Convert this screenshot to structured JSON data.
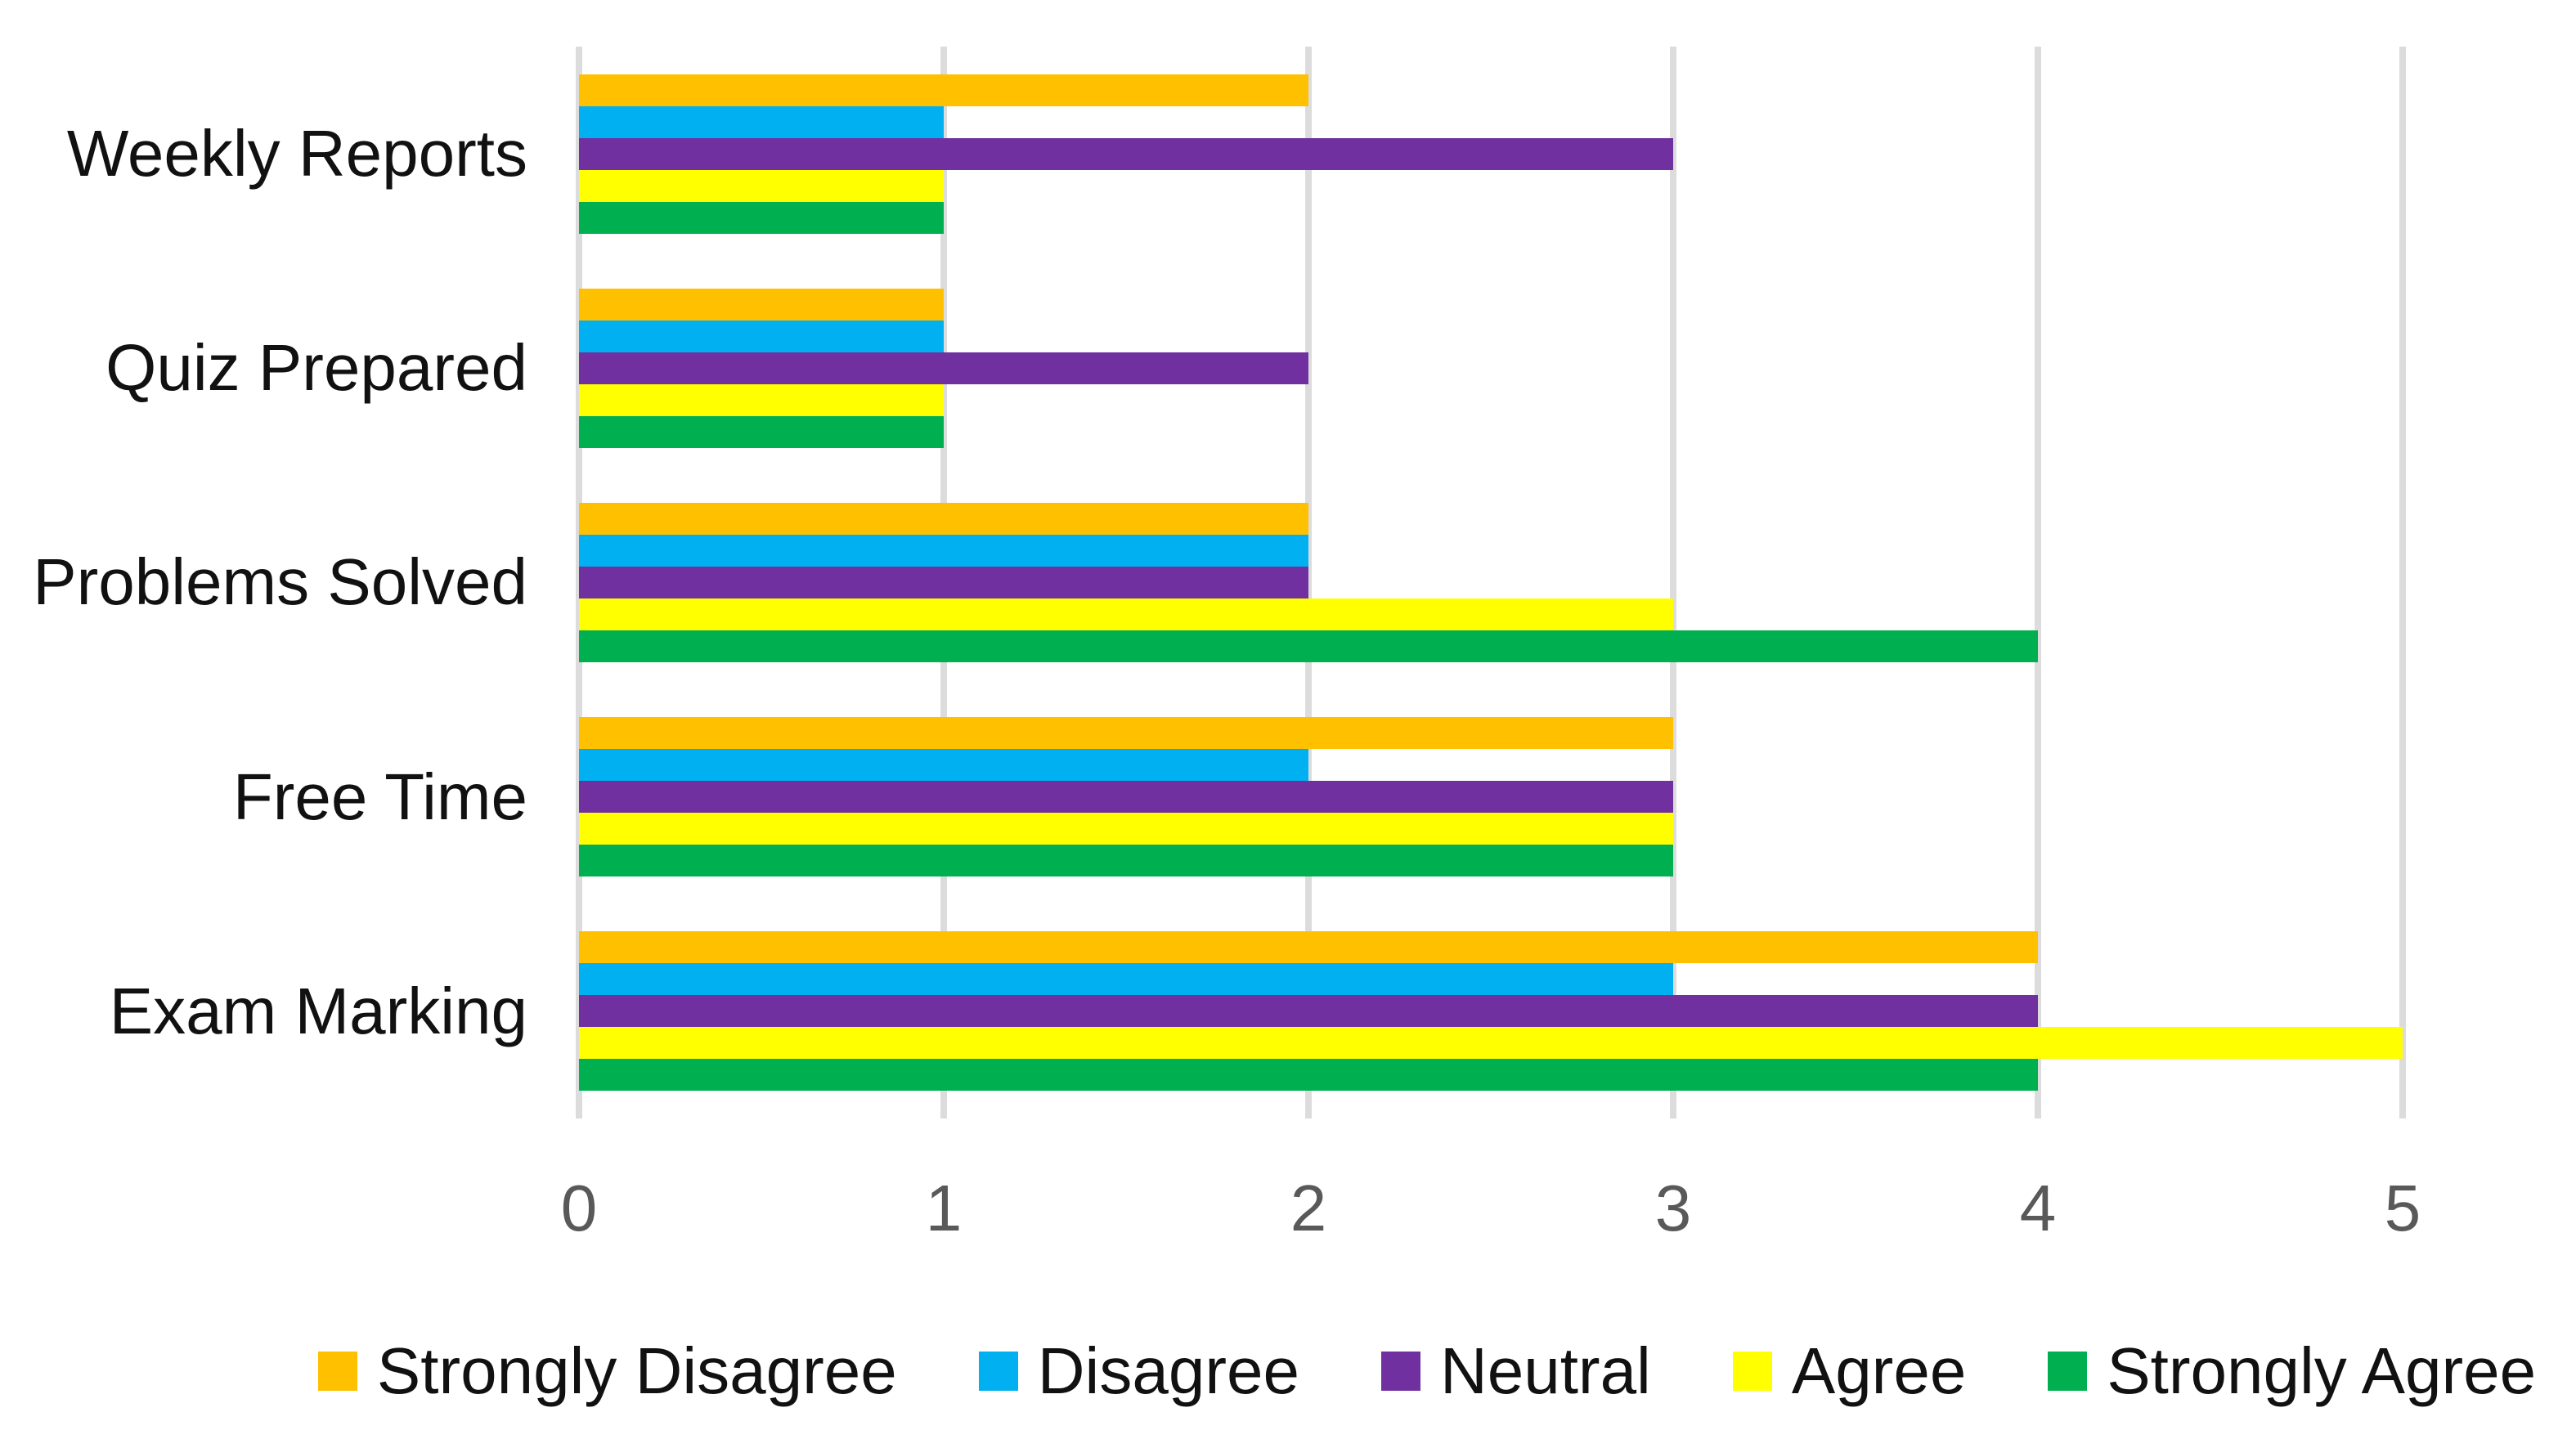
{
  "chart_data": {
    "type": "bar",
    "orientation": "horizontal",
    "title": "",
    "xlabel": "",
    "ylabel": "",
    "categories": [
      "Weekly Reports",
      "Quiz Prepared",
      "Problems Solved",
      "Free Time",
      "Exam Marking"
    ],
    "series": [
      {
        "name": "Strongly Disagree",
        "color": "#FFC000",
        "values": [
          2,
          1,
          2,
          3,
          4
        ]
      },
      {
        "name": "Disagree",
        "color": "#00B0F0",
        "values": [
          1,
          1,
          2,
          2,
          3
        ]
      },
      {
        "name": "Neutral",
        "color": "#7030A0",
        "values": [
          3,
          2,
          2,
          3,
          4
        ]
      },
      {
        "name": "Agree",
        "color": "#FFFF00",
        "values": [
          1,
          1,
          3,
          3,
          5
        ]
      },
      {
        "name": "Strongly Agree",
        "color": "#00B050",
        "values": [
          1,
          1,
          4,
          3,
          4
        ]
      }
    ],
    "x_ticks": [
      "0",
      "1",
      "2",
      "3",
      "4",
      "5"
    ],
    "xlim": [
      0,
      5
    ],
    "grid": true,
    "legend_position": "bottom"
  },
  "colors": {
    "background": "#FFFFFF",
    "gridline": "#DCDCDC",
    "axis_line": "#DCDCDC",
    "tick_label": "#595959",
    "category_label": "#111111",
    "legend_label": "#111111"
  }
}
